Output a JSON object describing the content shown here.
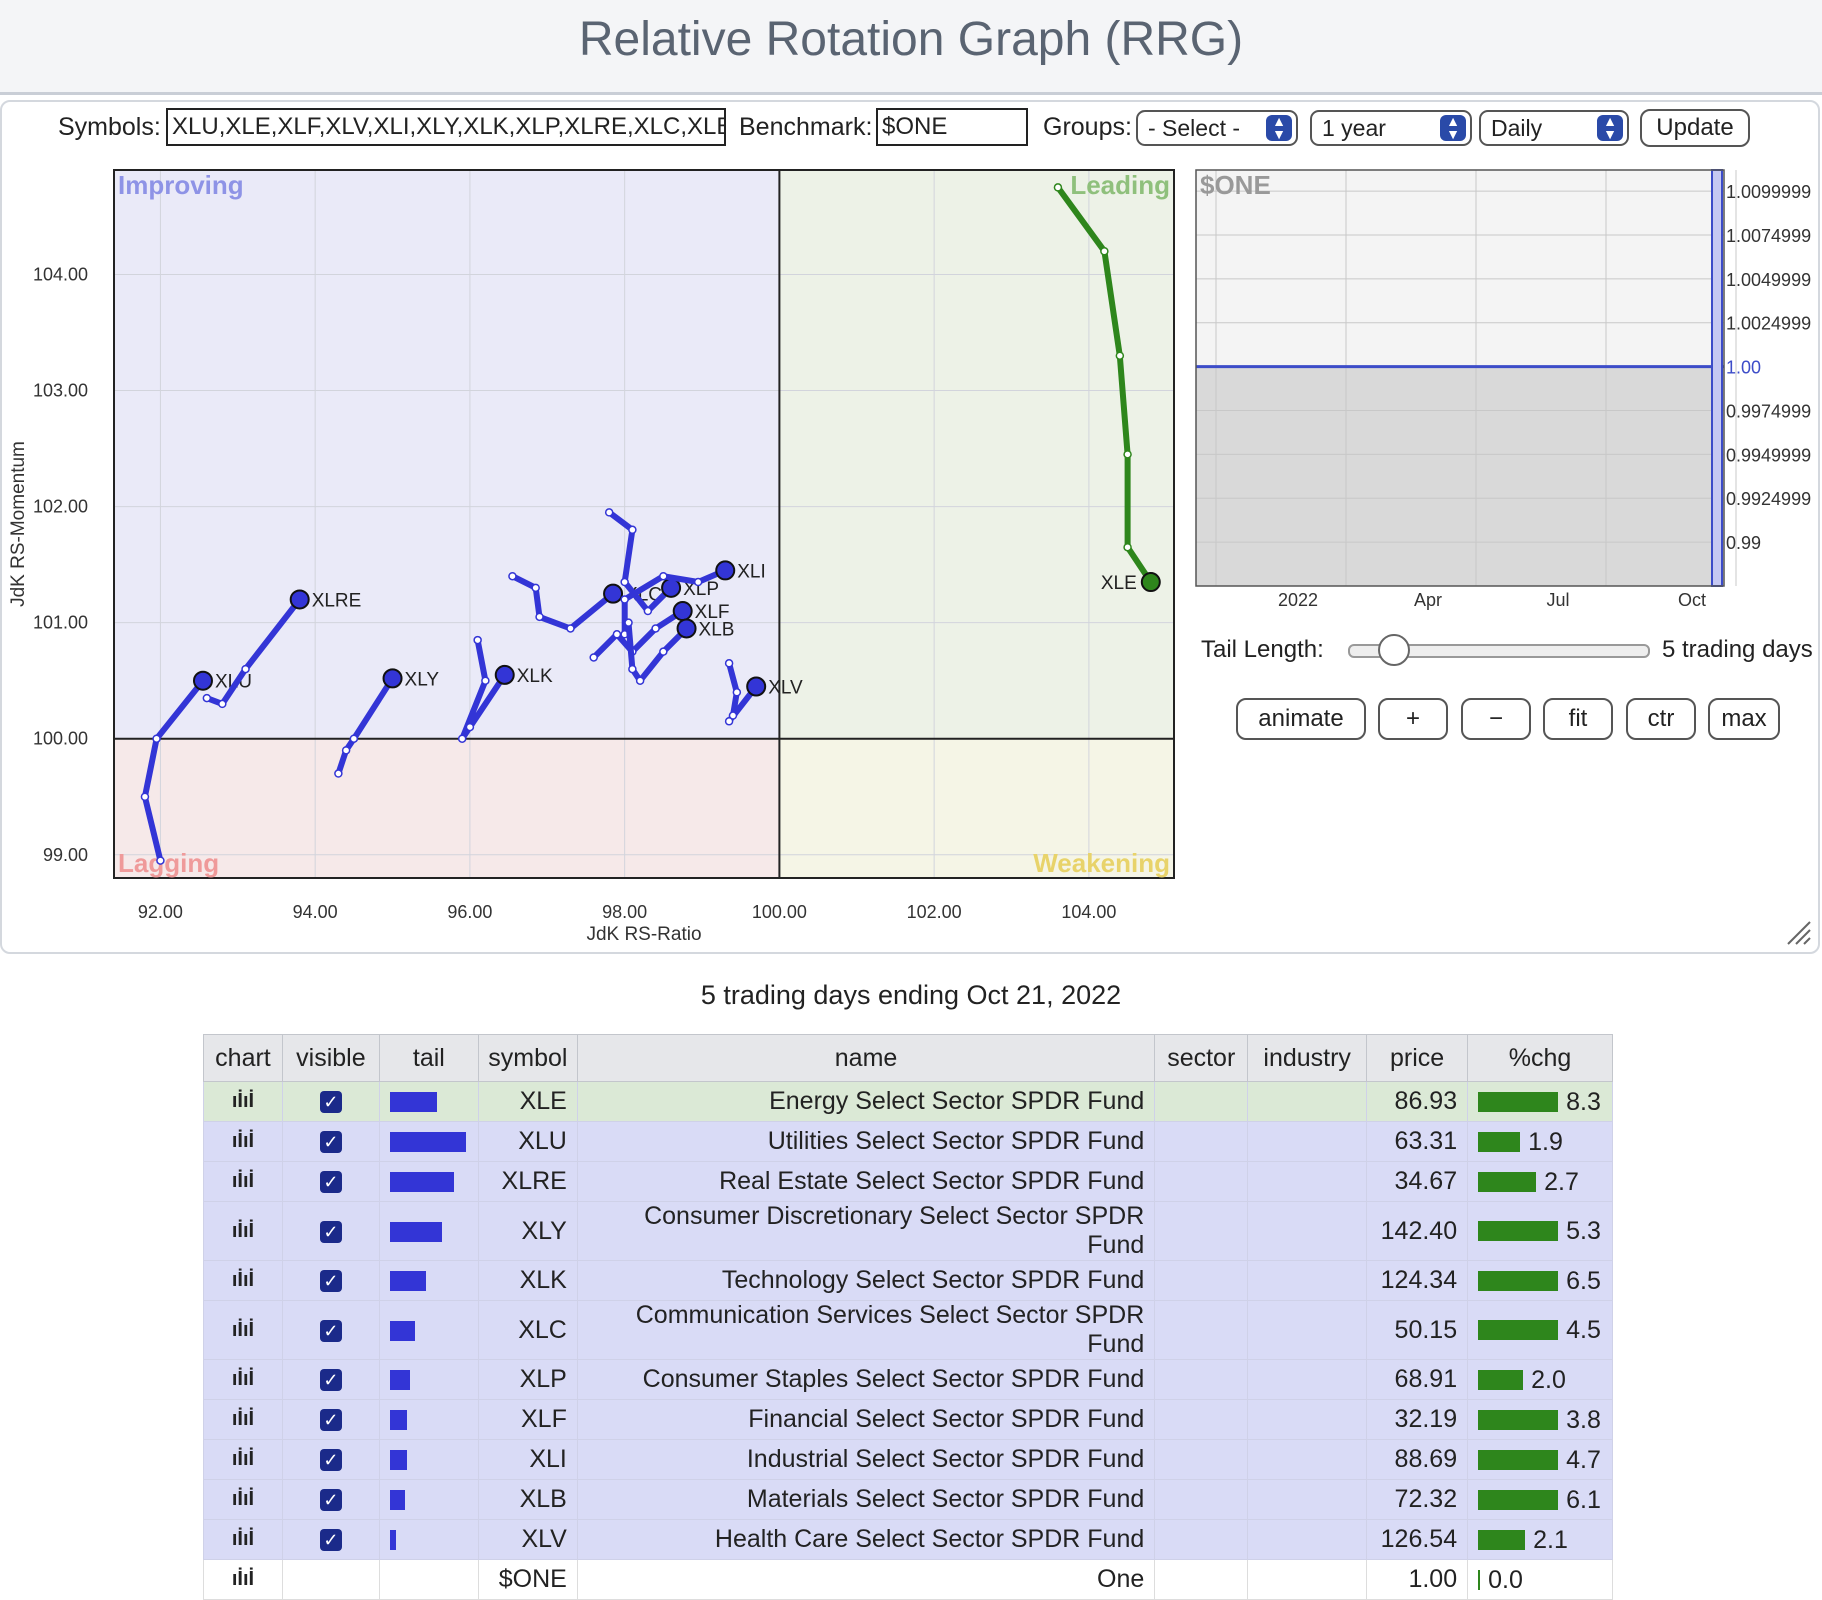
{
  "page": {
    "title": "Relative Rotation Graph (RRG)"
  },
  "controls": {
    "symbols_label": "Symbols:",
    "symbols_value": "XLU,XLE,XLF,XLV,XLI,XLY,XLK,XLP,XLRE,XLC,XLB",
    "benchmark_label": "Benchmark:",
    "benchmark_value": "$ONE",
    "groups_label": "Groups:",
    "groups_selected": "- Select -",
    "period_selected": "1 year",
    "frequency_selected": "Daily",
    "update_label": "Update"
  },
  "rrg": {
    "quadrants": {
      "improving": "Improving",
      "leading": "Leading",
      "lagging": "Lagging",
      "weakening": "Weakening"
    },
    "xlabel": "JdK RS-Ratio",
    "ylabel": "JdK RS-Momentum",
    "x_ticks": [
      "92.00",
      "94.00",
      "96.00",
      "98.00",
      "100.00",
      "102.00",
      "104.00"
    ],
    "y_ticks": [
      "104.00",
      "103.00",
      "102.00",
      "101.00",
      "100.00",
      "99.00"
    ]
  },
  "benchmark_chart": {
    "label": "$ONE",
    "y_ticks": [
      "1.0099999",
      "1.0074999",
      "1.0049999",
      "1.0024999",
      "1.00",
      "0.9974999",
      "0.9949999",
      "0.9924999",
      "0.99"
    ],
    "x_ticks": [
      "2022",
      "Apr",
      "Jul",
      "Oct"
    ],
    "value": 1.0
  },
  "tail": {
    "label": "Tail Length:",
    "value_text": "5 trading days",
    "value": 5
  },
  "zoom_buttons": [
    "animate",
    "+",
    "−",
    "fit",
    "ctr",
    "max"
  ],
  "table": {
    "caption": "5 trading days ending Oct 21, 2022",
    "headers": [
      "chart",
      "visible",
      "tail",
      "symbol",
      "name",
      "sector",
      "industry",
      "price",
      "%chg"
    ],
    "chart_icon": "ıİıİ",
    "rows": [
      {
        "symbol": "XLE",
        "name": "Energy Select Sector SPDR Fund",
        "price": "86.93",
        "chg": "8.3",
        "tail": 0.62,
        "chgbar": 1.0,
        "style": "green",
        "visible": true
      },
      {
        "symbol": "XLU",
        "name": "Utilities Select Sector SPDR Fund",
        "price": "63.31",
        "chg": "1.9",
        "tail": 1.0,
        "chgbar": 0.52,
        "style": "blue",
        "visible": true
      },
      {
        "symbol": "XLRE",
        "name": "Real Estate Select Sector SPDR Fund",
        "price": "34.67",
        "chg": "2.7",
        "tail": 0.84,
        "chgbar": 0.73,
        "style": "blue",
        "visible": true
      },
      {
        "symbol": "XLY",
        "name": "Consumer Discretionary Select Sector SPDR Fund",
        "price": "142.40",
        "chg": "5.3",
        "tail": 0.68,
        "chgbar": 1.0,
        "style": "blue",
        "visible": true
      },
      {
        "symbol": "XLK",
        "name": "Technology Select Sector SPDR Fund",
        "price": "124.34",
        "chg": "6.5",
        "tail": 0.47,
        "chgbar": 1.0,
        "style": "blue",
        "visible": true
      },
      {
        "symbol": "XLC",
        "name": "Communication Services Select Sector SPDR Fund",
        "price": "50.15",
        "chg": "4.5",
        "tail": 0.33,
        "chgbar": 1.0,
        "style": "blue",
        "visible": true
      },
      {
        "symbol": "XLP",
        "name": "Consumer Staples Select Sector SPDR Fund",
        "price": "68.91",
        "chg": "2.0",
        "tail": 0.26,
        "chgbar": 0.56,
        "style": "blue",
        "visible": true
      },
      {
        "symbol": "XLF",
        "name": "Financial Select Sector SPDR Fund",
        "price": "32.19",
        "chg": "3.8",
        "tail": 0.23,
        "chgbar": 1.0,
        "style": "blue",
        "visible": true
      },
      {
        "symbol": "XLI",
        "name": "Industrial Select Sector SPDR Fund",
        "price": "88.69",
        "chg": "4.7",
        "tail": 0.23,
        "chgbar": 1.0,
        "style": "blue",
        "visible": true
      },
      {
        "symbol": "XLB",
        "name": "Materials Select Sector SPDR Fund",
        "price": "72.32",
        "chg": "6.1",
        "tail": 0.2,
        "chgbar": 1.0,
        "style": "blue",
        "visible": true
      },
      {
        "symbol": "XLV",
        "name": "Health Care Select Sector SPDR Fund",
        "price": "126.54",
        "chg": "2.1",
        "tail": 0.08,
        "chgbar": 0.59,
        "style": "blue",
        "visible": true
      },
      {
        "symbol": "$ONE",
        "name": "One",
        "price": "1.00",
        "chg": "0.0",
        "tail": 0,
        "chgbar": 0,
        "style": "white",
        "visible": false
      }
    ]
  },
  "chart_data": {
    "type": "scatter",
    "xlabel": "JdK RS-Ratio",
    "ylabel": "JdK RS-Momentum",
    "xlim": [
      91.4,
      105.1
    ],
    "ylim": [
      98.8,
      104.9
    ],
    "series": [
      {
        "name": "XLE",
        "color": "#2e861c",
        "tail": [
          [
            103.6,
            104.75
          ],
          [
            104.2,
            104.2
          ],
          [
            104.4,
            103.3
          ],
          [
            104.5,
            102.45
          ],
          [
            104.5,
            101.65
          ],
          [
            104.8,
            101.35
          ]
        ]
      },
      {
        "name": "XLU",
        "color": "#3335d6",
        "tail": [
          [
            92.0,
            98.95
          ],
          [
            91.8,
            99.5
          ],
          [
            91.95,
            100.0
          ],
          [
            92.55,
            100.5
          ],
          [
            92.55,
            100.5
          ]
        ]
      },
      {
        "name": "XLRE",
        "color": "#3335d6",
        "tail": [
          [
            92.6,
            100.35
          ],
          [
            92.8,
            100.3
          ],
          [
            93.1,
            100.6
          ],
          [
            93.8,
            101.2
          ]
        ]
      },
      {
        "name": "XLY",
        "color": "#3335d6",
        "tail": [
          [
            94.3,
            99.7
          ],
          [
            94.4,
            99.9
          ],
          [
            94.5,
            100.0
          ],
          [
            95.0,
            100.52
          ]
        ]
      },
      {
        "name": "XLK",
        "color": "#3335d6",
        "tail": [
          [
            96.1,
            100.85
          ],
          [
            96.2,
            100.5
          ],
          [
            95.9,
            100.0
          ],
          [
            96.0,
            100.1
          ],
          [
            96.45,
            100.55
          ]
        ]
      },
      {
        "name": "XLC",
        "color": "#3335d6",
        "tail": [
          [
            96.55,
            101.4
          ],
          [
            96.85,
            101.3
          ],
          [
            96.9,
            101.05
          ],
          [
            97.3,
            100.95
          ],
          [
            97.85,
            101.25
          ]
        ]
      },
      {
        "name": "XLP",
        "color": "#3335d6",
        "tail": [
          [
            97.8,
            101.95
          ],
          [
            98.1,
            101.8
          ],
          [
            98.0,
            101.35
          ],
          [
            98.3,
            101.1
          ],
          [
            98.6,
            101.3
          ]
        ]
      },
      {
        "name": "XLF",
        "color": "#3335d6",
        "tail": [
          [
            97.6,
            100.7
          ],
          [
            97.9,
            100.9
          ],
          [
            98.1,
            100.75
          ],
          [
            98.4,
            100.95
          ],
          [
            98.75,
            101.1
          ]
        ]
      },
      {
        "name": "XLI",
        "color": "#3335d6",
        "tail": [
          [
            98.0,
            100.9
          ],
          [
            98.0,
            101.2
          ],
          [
            98.5,
            101.4
          ],
          [
            98.95,
            101.35
          ],
          [
            99.3,
            101.45
          ]
        ]
      },
      {
        "name": "XLB",
        "color": "#3335d6",
        "tail": [
          [
            98.05,
            101.0
          ],
          [
            98.1,
            100.6
          ],
          [
            98.2,
            100.5
          ],
          [
            98.5,
            100.75
          ],
          [
            98.8,
            100.95
          ]
        ]
      },
      {
        "name": "XLV",
        "color": "#3335d6",
        "tail": [
          [
            99.35,
            100.65
          ],
          [
            99.45,
            100.4
          ],
          [
            99.4,
            100.2
          ],
          [
            99.35,
            100.15
          ],
          [
            99.7,
            100.45
          ]
        ]
      }
    ]
  }
}
